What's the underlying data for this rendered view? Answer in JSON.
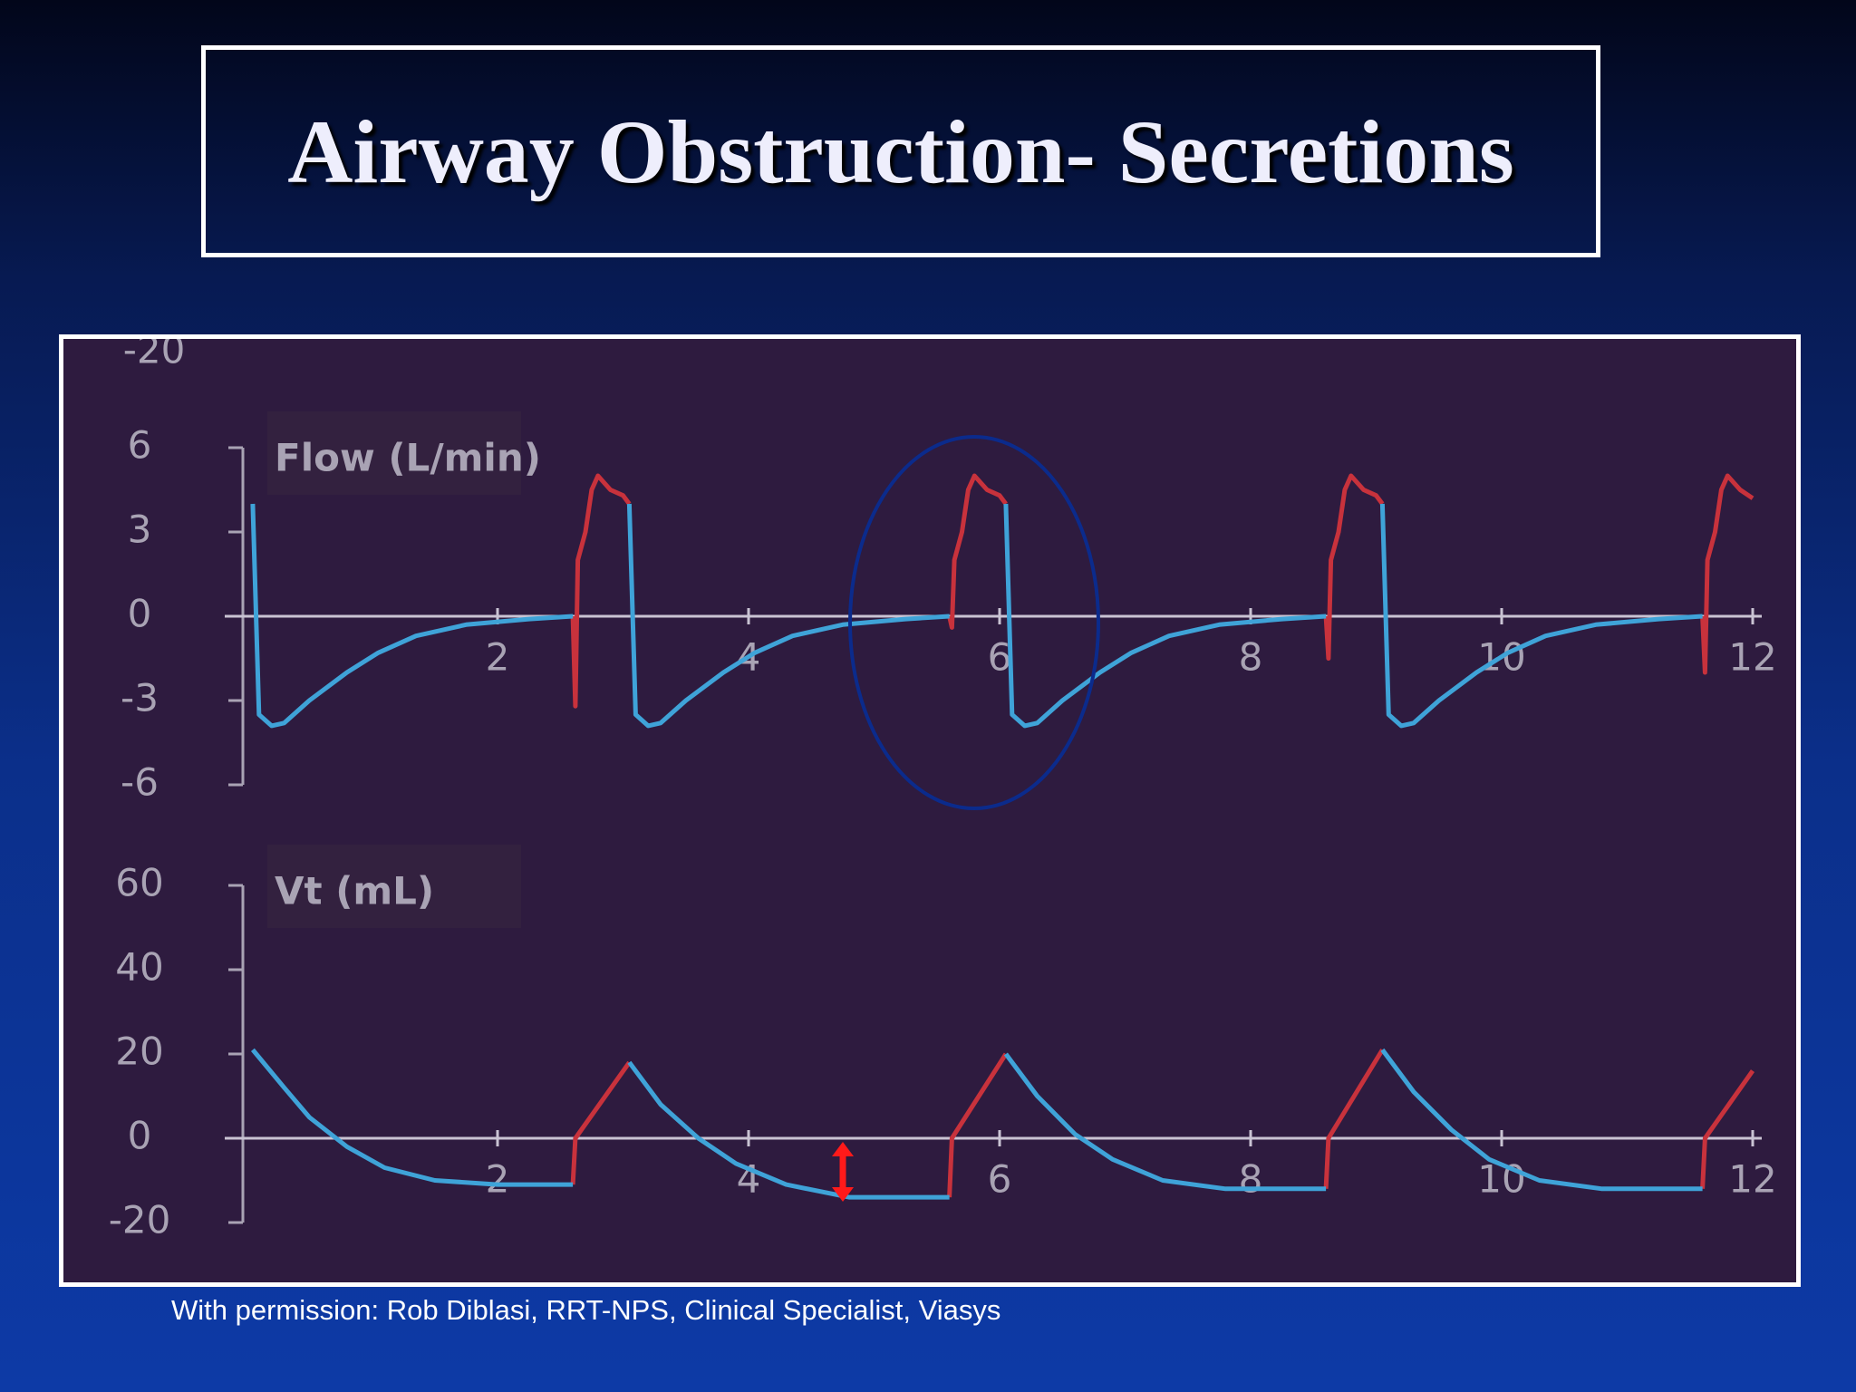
{
  "title": "Airway Obstruction- Secretions",
  "credit": "With permission: Rob Diblasi, RRT-NPS, Clinical Specialist, Viasys",
  "cropped_tick_label": -20,
  "chart_data": [
    {
      "type": "line",
      "label": "Flow (L/min)",
      "x": [
        0.05,
        0.1,
        0.2,
        0.3,
        0.5,
        0.8,
        1.05,
        1.35,
        1.75,
        2.25,
        2.6,
        2.62,
        2.64,
        2.7,
        2.75,
        2.8,
        2.9,
        3.0,
        3.05,
        3.1,
        3.2,
        3.3,
        3.5,
        3.8,
        4.05,
        4.35,
        4.75,
        5.25,
        5.6,
        5.62,
        5.64,
        5.7,
        5.75,
        5.8,
        5.9,
        6.0,
        6.05,
        6.1,
        6.2,
        6.3,
        6.5,
        6.8,
        7.05,
        7.35,
        7.75,
        8.25,
        8.6,
        8.62,
        8.64,
        8.7,
        8.75,
        8.8,
        8.9,
        9.0,
        9.05,
        9.1,
        9.2,
        9.3,
        9.5,
        9.8,
        10.05,
        10.35,
        10.75,
        11.25,
        11.6,
        11.62,
        11.64,
        11.7,
        11.75,
        11.8,
        11.9,
        12.0
      ],
      "xlim": [
        0,
        12
      ],
      "xticks": [
        2,
        4,
        6,
        8,
        10,
        12
      ],
      "ylim": [
        -6,
        6
      ],
      "yticks": [
        -6,
        -3,
        0,
        3,
        6
      ],
      "series": [
        {
          "color": "#c8323c",
          "values": [
            null,
            null,
            null,
            null,
            null,
            null,
            null,
            null,
            null,
            null,
            0,
            -3.2,
            2.0,
            3.0,
            4.5,
            5.0,
            4.5,
            4.3,
            4.0,
            null,
            null,
            null,
            null,
            null,
            null,
            null,
            null,
            null,
            0,
            -0.4,
            2.0,
            3.0,
            4.5,
            5.0,
            4.5,
            4.3,
            4.0,
            null,
            null,
            null,
            null,
            null,
            null,
            null,
            null,
            null,
            0,
            -1.5,
            2.0,
            3.0,
            4.5,
            5.0,
            4.5,
            4.3,
            4.0,
            null,
            null,
            null,
            null,
            null,
            null,
            null,
            null,
            null,
            0,
            -2.0,
            2.0,
            3.0,
            4.5,
            5.0,
            4.5,
            4.2
          ]
        },
        {
          "color": "#3fa3d8",
          "values": [
            4.0,
            -3.5,
            -3.9,
            -3.8,
            -3.0,
            -2.0,
            -1.3,
            -0.7,
            -0.3,
            -0.1,
            0,
            null,
            null,
            null,
            null,
            null,
            null,
            null,
            4.0,
            -3.5,
            -3.9,
            -3.8,
            -3.0,
            -2.0,
            -1.3,
            -0.7,
            -0.3,
            -0.1,
            0,
            null,
            null,
            null,
            null,
            null,
            null,
            null,
            4.0,
            -3.5,
            -3.9,
            -3.8,
            -3.0,
            -2.0,
            -1.3,
            -0.7,
            -0.3,
            -0.1,
            0,
            null,
            null,
            null,
            null,
            null,
            null,
            null,
            4.0,
            -3.5,
            -3.9,
            -3.8,
            -3.0,
            -2.0,
            -1.3,
            -0.7,
            -0.3,
            -0.1,
            0,
            null,
            null,
            null,
            null,
            null,
            null,
            null
          ]
        }
      ]
    },
    {
      "type": "line",
      "label": "Vt (mL)",
      "x": [
        0.05,
        0.3,
        0.5,
        0.8,
        1.1,
        1.5,
        2.0,
        2.6,
        2.62,
        3.05,
        3.3,
        3.6,
        3.9,
        4.3,
        4.8,
        5.6,
        5.62,
        6.05,
        6.3,
        6.6,
        6.9,
        7.3,
        7.8,
        8.6,
        8.62,
        9.05,
        9.3,
        9.6,
        9.9,
        10.3,
        10.8,
        11.6,
        11.62,
        12.0
      ],
      "xlim": [
        0,
        12
      ],
      "xticks": [
        2,
        4,
        6,
        8,
        10,
        12
      ],
      "ylim": [
        -20,
        60
      ],
      "yticks": [
        -20,
        0,
        20,
        40,
        60
      ],
      "series": [
        {
          "color": "#c8323c",
          "values": [
            null,
            null,
            null,
            null,
            null,
            null,
            null,
            -11,
            0,
            18,
            null,
            null,
            null,
            null,
            null,
            -14,
            0,
            20,
            null,
            null,
            null,
            null,
            null,
            -12,
            0,
            21,
            null,
            null,
            null,
            null,
            null,
            -12,
            0,
            16
          ]
        },
        {
          "color": "#3fa3d8",
          "values": [
            21,
            12,
            5,
            -2,
            -7,
            -10,
            -11,
            -11,
            null,
            18,
            8,
            0,
            -6,
            -11,
            -14,
            -14,
            null,
            20,
            10,
            1,
            -5,
            -10,
            -12,
            -12,
            null,
            21,
            11,
            2,
            -5,
            -10,
            -12,
            -12,
            null,
            null
          ]
        }
      ]
    }
  ]
}
